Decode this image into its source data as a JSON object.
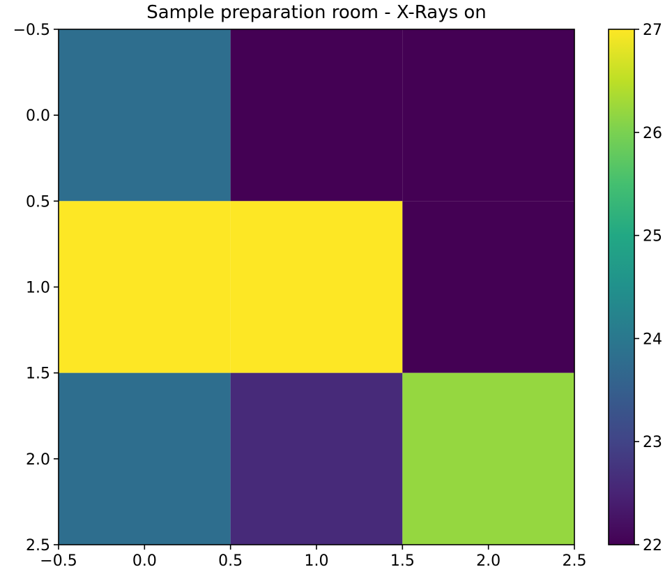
{
  "chart_data": {
    "type": "heatmap",
    "title": "Sample preparation room - X-Rays on",
    "xlabel": "",
    "ylabel": "",
    "x": [
      0,
      1,
      2
    ],
    "y": [
      0,
      1,
      2
    ],
    "values": [
      [
        23.8,
        22.0,
        22.0
      ],
      [
        27.0,
        27.0,
        22.0
      ],
      [
        23.8,
        22.6,
        26.2
      ]
    ],
    "xlim": [
      -0.5,
      2.5
    ],
    "ylim": [
      2.5,
      -0.5
    ],
    "y_inverted": true,
    "x_ticks": [
      -0.5,
      0.0,
      0.5,
      1.0,
      1.5,
      2.0,
      2.5
    ],
    "x_tick_labels": [
      "−0.5",
      "0.0",
      "0.5",
      "1.0",
      "1.5",
      "2.0",
      "2.5"
    ],
    "y_ticks": [
      -0.5,
      0.0,
      0.5,
      1.0,
      1.5,
      2.0,
      2.5
    ],
    "y_tick_labels": [
      "−0.5",
      "0.0",
      "0.5",
      "1.0",
      "1.5",
      "2.0",
      "2.5"
    ],
    "grid": false,
    "colormap": "viridis",
    "colorbar": {
      "min": 22,
      "max": 27,
      "ticks": [
        22,
        23,
        24,
        25,
        26,
        27
      ],
      "tick_labels": [
        "22",
        "23",
        "24",
        "25",
        "26",
        "27"
      ],
      "placement": "right"
    }
  }
}
